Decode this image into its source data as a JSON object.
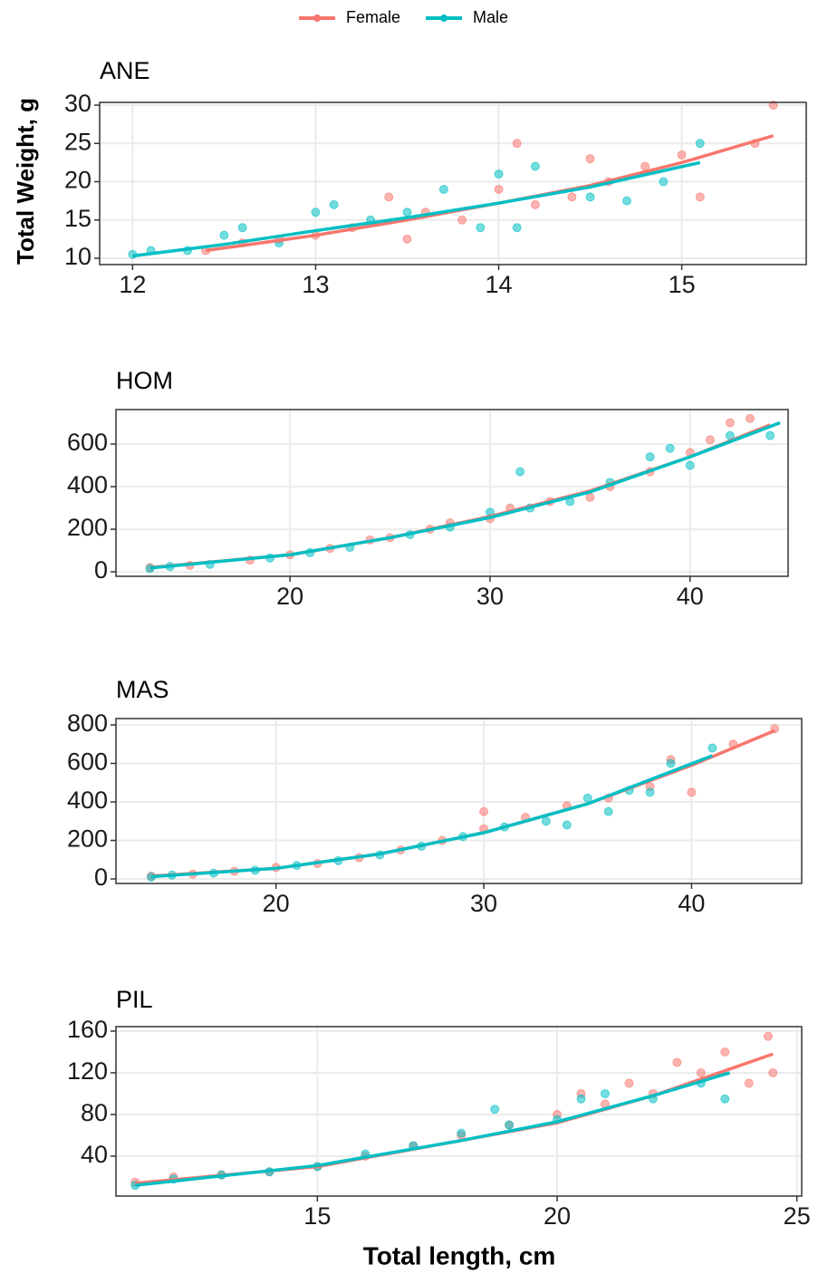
{
  "chart_data": [
    {
      "type": "scatter",
      "title": "ANE",
      "ylabel": "Total Weight, g",
      "xlim": [
        11.82,
        15.68
      ],
      "xticks": [
        12,
        13,
        14,
        15
      ],
      "ylim": [
        9.17,
        30.36
      ],
      "yticks": [
        10,
        15,
        20,
        25,
        30
      ],
      "grid": true,
      "series": [
        {
          "name": "Female",
          "color": "#F8766D",
          "x": [
            12.4,
            12.6,
            12.8,
            13,
            13.2,
            13.4,
            13.5,
            13.6,
            13.8,
            14,
            14.1,
            14.2,
            14.4,
            14.5,
            14.6,
            14.8,
            15,
            15.1,
            15.4,
            15.5
          ],
          "values": [
            11,
            12,
            12.5,
            13,
            14,
            18,
            12.5,
            16,
            15,
            19,
            25,
            17,
            18,
            23,
            20,
            22,
            23.5,
            18,
            25,
            30
          ],
          "fit": {
            "x": [
              12.4,
              13,
              13.5,
              14,
              14.5,
              15,
              15.5
            ],
            "values": [
              11,
              13,
              15,
              17.2,
              19.5,
              22.5,
              26
            ]
          }
        },
        {
          "name": "Male",
          "color": "#00BFC4",
          "x": [
            12,
            12.1,
            12.3,
            12.5,
            12.6,
            12.8,
            13,
            13.1,
            13.3,
            13.5,
            13.7,
            13.9,
            14,
            14.1,
            14.2,
            14.5,
            14.7,
            14.9,
            15.1
          ],
          "values": [
            10.5,
            11,
            11,
            13,
            14,
            12,
            16,
            17,
            15,
            16,
            19,
            14,
            21,
            14,
            22,
            18,
            17.5,
            20,
            25
          ],
          "fit": {
            "x": [
              12,
              12.5,
              13,
              13.5,
              14,
              14.5,
              15.1
            ],
            "values": [
              10.3,
              11.8,
              13.6,
              15.3,
              17.2,
              19.3,
              22.5
            ]
          }
        }
      ]
    },
    {
      "type": "scatter",
      "title": "HOM",
      "xlim": [
        11.3,
        44.9
      ],
      "xticks": [
        20,
        30,
        40
      ],
      "ylim": [
        -21,
        762
      ],
      "yticks": [
        0,
        200,
        400,
        600
      ],
      "grid": true,
      "series": [
        {
          "name": "Female",
          "color": "#F8766D",
          "x": [
            13,
            15,
            18,
            20,
            22,
            24,
            25,
            27,
            28,
            30,
            31,
            33,
            35,
            36,
            38,
            40,
            41,
            42,
            43
          ],
          "values": [
            20,
            30,
            55,
            80,
            110,
            150,
            160,
            200,
            230,
            250,
            300,
            330,
            350,
            400,
            470,
            560,
            620,
            700,
            720
          ],
          "fit": {
            "x": [
              13,
              20,
              25,
              30,
              35,
              40,
              44
            ],
            "values": [
              20,
              80,
              160,
              260,
              380,
              540,
              690
            ]
          }
        },
        {
          "name": "Male",
          "color": "#00BFC4",
          "x": [
            13,
            14,
            16,
            19,
            21,
            23,
            26,
            28,
            30,
            31.5,
            32,
            34,
            36,
            38,
            39,
            40,
            42,
            44
          ],
          "values": [
            15,
            25,
            35,
            65,
            90,
            115,
            175,
            210,
            280,
            470,
            300,
            330,
            420,
            540,
            580,
            500,
            640,
            640
          ],
          "fit": {
            "x": [
              13,
              20,
              25,
              30,
              35,
              40,
              44.5
            ],
            "values": [
              18,
              80,
              160,
              255,
              375,
              540,
              700
            ]
          }
        }
      ]
    },
    {
      "type": "scatter",
      "title": "MAS",
      "xlim": [
        12.3,
        45.3
      ],
      "xticks": [
        20,
        30,
        40
      ],
      "ylim": [
        -23.5,
        833
      ],
      "yticks": [
        0,
        200,
        400,
        600,
        800
      ],
      "grid": true,
      "series": [
        {
          "name": "Female",
          "color": "#F8766D",
          "x": [
            14,
            16,
            18,
            20,
            22,
            24,
            26,
            28,
            30,
            30,
            32,
            34,
            36,
            38,
            39,
            40,
            42,
            44
          ],
          "values": [
            15,
            25,
            40,
            60,
            80,
            110,
            150,
            200,
            260,
            350,
            320,
            380,
            420,
            480,
            620,
            450,
            700,
            780
          ],
          "fit": {
            "x": [
              14,
              20,
              25,
              30,
              35,
              40,
              44
            ],
            "values": [
              15,
              55,
              130,
              240,
              390,
              590,
              770
            ]
          }
        },
        {
          "name": "Male",
          "color": "#00BFC4",
          "x": [
            14,
            15,
            17,
            19,
            21,
            23,
            25,
            27,
            29,
            31,
            33,
            34,
            35,
            36,
            37,
            38,
            39,
            41
          ],
          "values": [
            10,
            20,
            30,
            45,
            70,
            95,
            125,
            170,
            220,
            270,
            300,
            280,
            420,
            350,
            460,
            450,
            600,
            680
          ],
          "fit": {
            "x": [
              14,
              20,
              25,
              30,
              35,
              41
            ],
            "values": [
              12,
              55,
              130,
              240,
              390,
              640
            ]
          }
        }
      ]
    },
    {
      "type": "scatter",
      "title": "PIL",
      "xlabel": "Total length, cm",
      "xlim": [
        10.8,
        25.1
      ],
      "xticks": [
        15,
        20,
        25
      ],
      "ylim": [
        1.7,
        164.3
      ],
      "yticks": [
        40,
        80,
        120,
        160
      ],
      "grid": true,
      "series": [
        {
          "name": "Female",
          "color": "#F8766D",
          "x": [
            11.2,
            12,
            13,
            14,
            15,
            16,
            17,
            18,
            19,
            20,
            20.5,
            21,
            21.5,
            22,
            22.5,
            23,
            23.5,
            24,
            24.4,
            24.5
          ],
          "values": [
            15,
            20,
            22,
            25,
            30,
            40,
            50,
            60,
            70,
            80,
            100,
            90,
            110,
            100,
            130,
            120,
            140,
            110,
            155,
            120
          ],
          "fit": {
            "x": [
              11.2,
              15,
              18,
              20,
              22,
              24.5
            ],
            "values": [
              14,
              30,
              55,
              72,
              98,
              138
            ]
          }
        },
        {
          "name": "Male",
          "color": "#00BFC4",
          "x": [
            11.2,
            12,
            13,
            14,
            15,
            16,
            17,
            18,
            18.7,
            19,
            20,
            20.5,
            21,
            22,
            23,
            23.5
          ],
          "values": [
            12,
            18,
            22,
            25,
            30,
            42,
            50,
            62,
            85,
            70,
            75,
            95,
            100,
            95,
            110,
            95
          ],
          "fit": {
            "x": [
              11.2,
              15,
              18,
              20,
              22,
              23.6
            ],
            "values": [
              12,
              31,
              55,
              73,
              98,
              120
            ]
          }
        }
      ]
    }
  ]
}
